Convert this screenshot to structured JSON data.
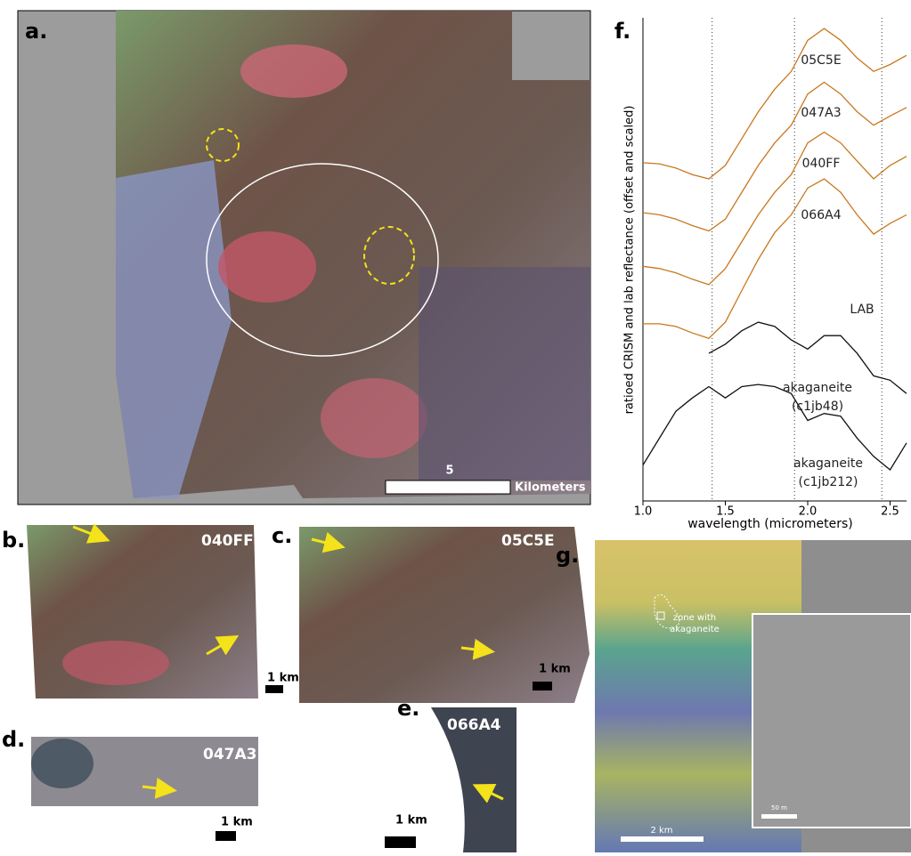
{
  "panels": {
    "a": {
      "label": "a.",
      "scale_value": "5",
      "scale_unit": "Kilometers"
    },
    "b": {
      "label": "b.",
      "id": "040FF",
      "scale": "1 km"
    },
    "c": {
      "label": "c.",
      "id": "05C5E",
      "scale": "1 km"
    },
    "d": {
      "label": "d.",
      "id": "047A3",
      "scale": "1 km"
    },
    "e": {
      "label": "e.",
      "id": "066A4",
      "scale": "1 km"
    },
    "g": {
      "label": "g.",
      "annotation": "zone with akaganeite",
      "scale_main": "2 km",
      "scale_inset": "50 m"
    }
  },
  "chart_data": {
    "type": "line",
    "panel_label": "f.",
    "x_label": "wavelength (micrometers)",
    "y_label": "ratioed CRISM and lab reflectance (offset and scaled)",
    "annotation": "LAB",
    "x": [
      1.0,
      1.1,
      1.2,
      1.3,
      1.4,
      1.5,
      1.6,
      1.7,
      1.8,
      1.9,
      2.0,
      2.1,
      2.2,
      2.3,
      2.4,
      2.5,
      2.6
    ],
    "xlim": [
      1.0,
      2.6
    ],
    "xticks": [
      {
        "value": 1.0,
        "label": "1.0"
      },
      1.5,
      {
        "value": 2.0,
        "label": "2.0"
      },
      2.5
    ],
    "ylim": [
      0,
      9
    ],
    "vlines": [
      1.42,
      1.92,
      2.45
    ],
    "series": [
      {
        "name": "05C5E",
        "color": "#c8781e",
        "values": [
          6.3,
          6.28,
          6.2,
          6.08,
          6.0,
          6.25,
          6.75,
          7.25,
          7.67,
          8.0,
          8.58,
          8.8,
          8.58,
          8.25,
          8.0,
          8.13,
          8.3
        ]
      },
      {
        "name": "047A3",
        "color": "#c8781e",
        "values": [
          5.37,
          5.33,
          5.25,
          5.13,
          5.03,
          5.25,
          5.75,
          6.25,
          6.67,
          7.0,
          7.58,
          7.8,
          7.58,
          7.25,
          7.0,
          7.17,
          7.33
        ]
      },
      {
        "name": "040FF",
        "color": "#c8781e",
        "values": [
          4.37,
          4.33,
          4.25,
          4.13,
          4.03,
          4.33,
          4.83,
          5.33,
          5.75,
          6.08,
          6.67,
          6.87,
          6.67,
          6.33,
          6.0,
          6.25,
          6.42
        ]
      },
      {
        "name": "066A4",
        "color": "#c8781e",
        "values": [
          3.3,
          3.3,
          3.25,
          3.13,
          3.03,
          3.33,
          3.92,
          4.5,
          5.0,
          5.33,
          5.83,
          6.0,
          5.75,
          5.33,
          4.97,
          5.17,
          5.33
        ]
      },
      {
        "name": "akaganeite (c1jb48)",
        "color": "#111111",
        "values": [
          null,
          null,
          null,
          null,
          2.75,
          2.92,
          3.17,
          3.33,
          3.25,
          3.0,
          2.83,
          3.08,
          3.08,
          2.75,
          2.33,
          2.25,
          2.0
        ]
      },
      {
        "name": "akaganeite (c1jb212)",
        "color": "#111111",
        "values": [
          0.67,
          1.17,
          1.67,
          1.92,
          2.13,
          1.92,
          2.13,
          2.17,
          2.13,
          2.0,
          1.5,
          1.63,
          1.58,
          1.17,
          0.83,
          0.58,
          1.08
        ]
      }
    ]
  }
}
